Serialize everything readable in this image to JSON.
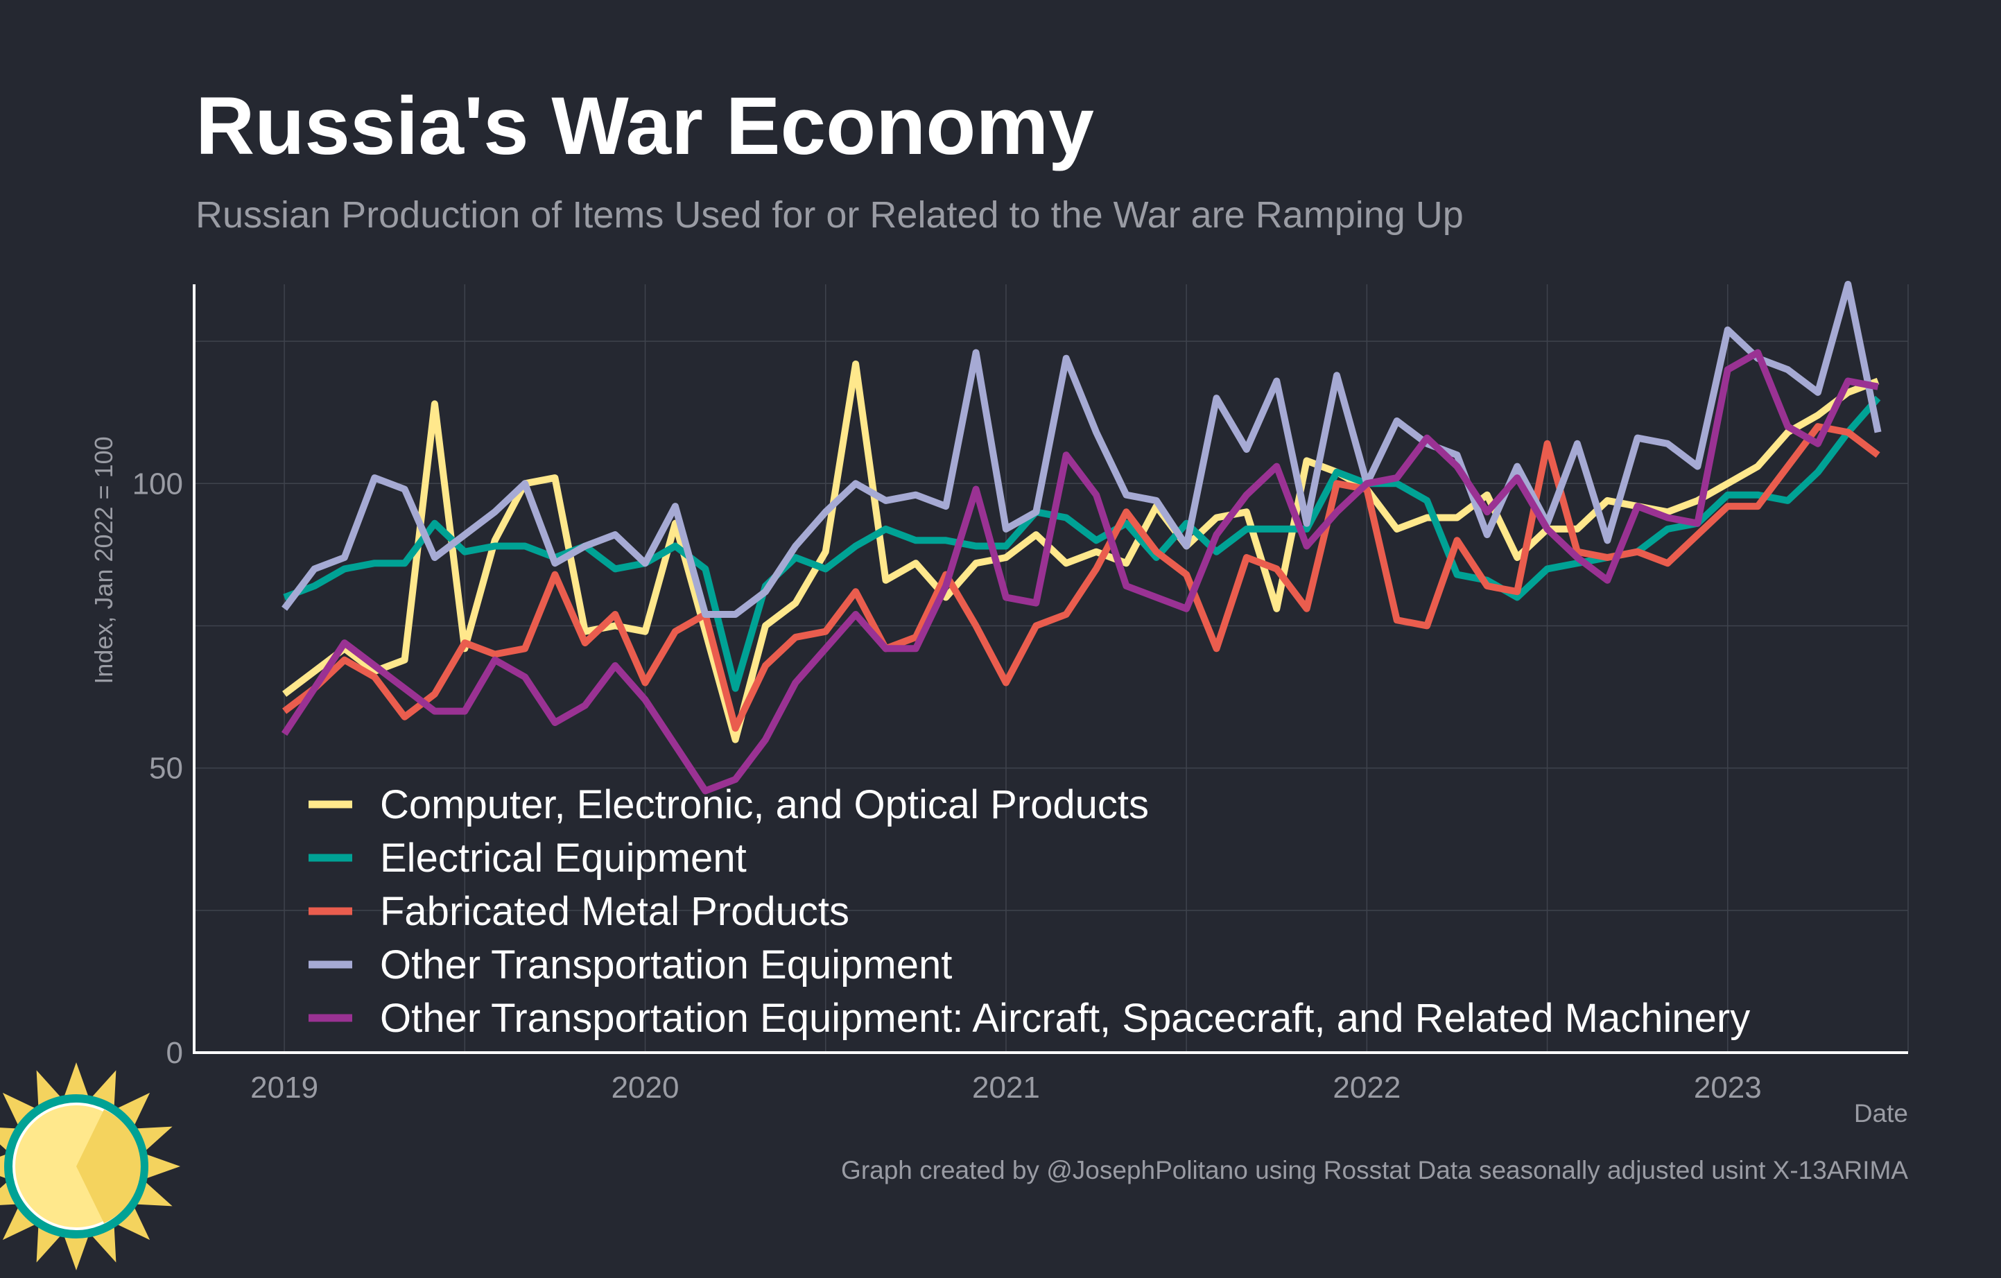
{
  "chart_data": {
    "type": "line",
    "title": "Russia's War Economy",
    "subtitle": "Russian Production of Items Used for or Related to the War are Ramping Up",
    "xlabel": "Date",
    "ylabel": "Index, Jan 2022 = 100",
    "caption": "Graph created by @JosephPolitano using Rosstat Data seasonally adjusted usint X-13ARIMA",
    "x_start": "2019-01",
    "x_end": "2023-05",
    "xlim": [
      "2018-10",
      "2023-07"
    ],
    "ylim": [
      0,
      135
    ],
    "x_ticks": [
      "2019",
      "2020",
      "2021",
      "2022",
      "2023"
    ],
    "y_ticks": [
      0,
      50,
      100
    ],
    "grid": true,
    "legend_position": "bottom-left",
    "series": [
      {
        "name": "Computer, Electronic, and Optical Products",
        "color": "#ffe88c",
        "values": [
          63,
          67,
          71,
          67,
          69,
          114,
          71,
          90,
          100,
          101,
          74,
          75,
          74,
          93,
          74,
          55,
          75,
          79,
          88,
          121,
          83,
          86,
          80,
          86,
          87,
          91,
          86,
          88,
          86,
          96,
          89,
          94,
          95,
          78,
          104,
          102,
          99,
          92,
          94,
          94,
          98,
          87,
          92,
          92,
          97,
          96,
          95,
          97,
          100,
          103,
          109,
          112,
          116,
          118
        ]
      },
      {
        "name": "Electrical Equipment",
        "color": "#00a295",
        "values": [
          80,
          82,
          85,
          86,
          86,
          93,
          88,
          89,
          89,
          87,
          89,
          85,
          86,
          89,
          85,
          64,
          82,
          87,
          85,
          89,
          92,
          90,
          90,
          89,
          89,
          95,
          94,
          90,
          93,
          87,
          93,
          88,
          92,
          92,
          92,
          102,
          100,
          100,
          97,
          84,
          83,
          80,
          85,
          86,
          87,
          88,
          92,
          93,
          98,
          98,
          97,
          102,
          109,
          115
        ]
      },
      {
        "name": "Fabricated Metal Products",
        "color": "#ea5d4e",
        "values": [
          60,
          64,
          69,
          66,
          59,
          63,
          72,
          70,
          71,
          84,
          72,
          77,
          65,
          74,
          77,
          57,
          68,
          73,
          74,
          81,
          71,
          73,
          84,
          75,
          65,
          75,
          77,
          85,
          95,
          88,
          84,
          71,
          87,
          85,
          78,
          100,
          99,
          76,
          75,
          90,
          82,
          81,
          107,
          88,
          87,
          88,
          86,
          91,
          96,
          96,
          103,
          110,
          109,
          105
        ]
      },
      {
        "name": "Other Transportation Equipment",
        "color": "#a6aad4",
        "values": [
          78,
          85,
          87,
          101,
          99,
          87,
          91,
          95,
          100,
          86,
          89,
          91,
          86,
          96,
          77,
          77,
          81,
          89,
          95,
          100,
          97,
          98,
          96,
          123,
          92,
          95,
          122,
          109,
          98,
          97,
          89,
          115,
          106,
          118,
          93,
          119,
          100,
          111,
          107,
          105,
          91,
          103,
          93,
          107,
          90,
          108,
          107,
          103,
          127,
          122,
          120,
          116,
          135,
          109
        ]
      },
      {
        "name": "Other Transportation Equipment: Aircraft, Spacecraft, and Related Machinery",
        "color": "#9a3293",
        "values": [
          56,
          64,
          72,
          68,
          64,
          60,
          60,
          69,
          66,
          58,
          61,
          68,
          62,
          54,
          46,
          48,
          55,
          65,
          71,
          77,
          71,
          71,
          82,
          99,
          80,
          79,
          105,
          98,
          82,
          80,
          78,
          91,
          98,
          103,
          89,
          95,
          100,
          101,
          108,
          103,
          95,
          101,
          92,
          87,
          83,
          96,
          94,
          93,
          120,
          123,
          110,
          107,
          118,
          117
        ]
      }
    ]
  },
  "colors": {
    "background": "#252831",
    "grid": "#3f434d",
    "axis": "#ffffff",
    "muted_text": "#9a9ca4"
  },
  "logo": {
    "icon": "sun-logo-icon"
  }
}
